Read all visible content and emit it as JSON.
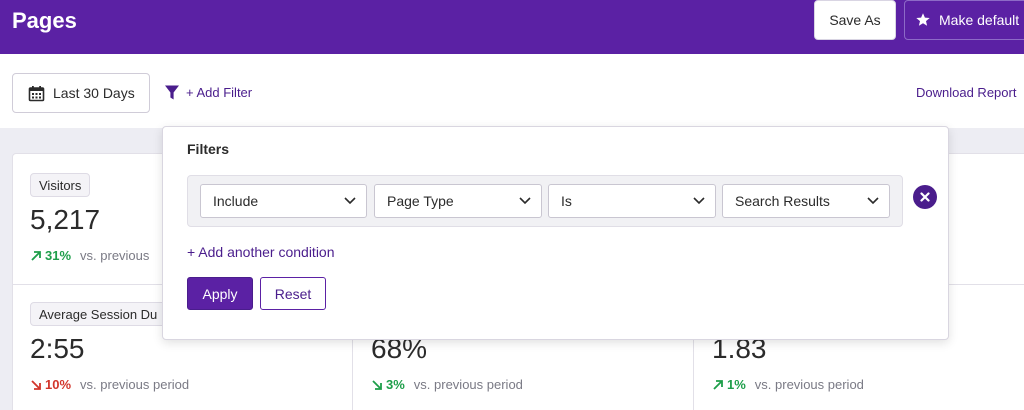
{
  "header": {
    "title": "Pages",
    "save_as_label": "Save As",
    "make_default_label": "Make default"
  },
  "toolbar": {
    "date_range_label": "Last 30 Days",
    "add_filter_label": "+ Add Filter",
    "download_label": "Download Report"
  },
  "stats": [
    {
      "label": "Visitors",
      "value": "5,217",
      "change": "31%",
      "direction": "up",
      "comparison": "vs. previous"
    },
    {
      "label": "Average Session Du",
      "value": "2:55",
      "change": "10%",
      "direction": "down",
      "comparison": "vs. previous period"
    },
    {
      "label": "",
      "value": "68%",
      "change": "3%",
      "direction": "down-good",
      "comparison": "vs. previous period"
    },
    {
      "label": "",
      "value": "1.83",
      "change": "1%",
      "direction": "up",
      "comparison": "vs. previous period"
    }
  ],
  "filters": {
    "title": "Filters",
    "condition": {
      "mode": "Include",
      "field": "Page Type",
      "operator": "Is",
      "value": "Search Results"
    },
    "add_condition_label": "+ Add another condition",
    "apply_label": "Apply",
    "reset_label": "Reset"
  },
  "colors": {
    "brand": "#5b21a4",
    "link": "#4a1d8c",
    "positive": "#1e9e4a",
    "negative": "#d2352b"
  },
  "icons": {
    "date": "calendar-icon",
    "filter": "funnel-icon",
    "make_default": "star-icon",
    "remove": "close-circle-icon",
    "select": "chevron-down-icon"
  }
}
